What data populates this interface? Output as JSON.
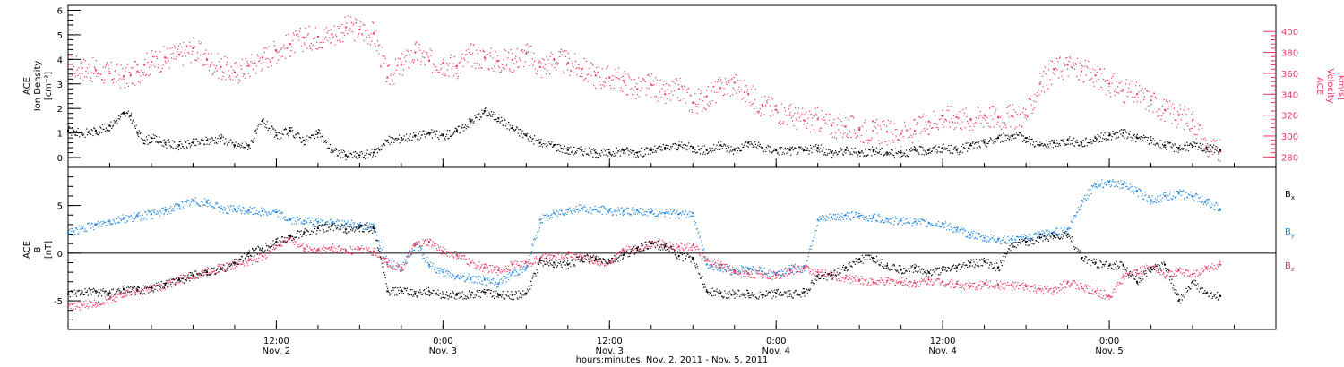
{
  "colors": {
    "density": "#000000",
    "velocity": "#e8365d",
    "bx": "#000000",
    "by": "#1e86e0",
    "bz": "#e8365d"
  },
  "time_axis": {
    "tick_times": [
      "12:00",
      "0:00",
      "12:00",
      "0:00",
      "12:00",
      "0:00"
    ],
    "tick_dates": [
      "Nov. 2",
      "Nov. 3",
      "Nov. 3",
      "Nov. 4",
      "Nov. 4",
      "Nov. 5"
    ],
    "xlabel": "hours:minutes, Nov.  2, 2011 - Nov.  5, 2011"
  },
  "chart_data": [
    {
      "type": "scatter",
      "panel": "top",
      "ylabel_left": [
        "ACE",
        "Ion Density",
        "[cm⁻³]"
      ],
      "ylabel_right": [
        "ACE",
        "Velocity",
        "[km/s]"
      ],
      "ylim_left": [
        -0.4,
        6.2
      ],
      "ylim_right": [
        270,
        425
      ],
      "yticks_left": [
        0,
        1,
        2,
        3,
        4,
        5,
        6
      ],
      "yticks_right": [
        280,
        300,
        320,
        340,
        360,
        380,
        400
      ],
      "xlim_hours": [
        -3,
        84
      ],
      "grid": false,
      "series": [
        {
          "axis": "left",
          "color_key": "density",
          "x": [
            -3,
            -2,
            -1,
            0,
            1,
            1.5,
            2,
            2.5,
            3,
            4,
            5,
            6,
            7,
            8,
            9,
            10,
            11,
            12,
            13,
            14,
            15,
            16,
            17,
            18,
            19,
            20,
            21,
            22,
            23,
            24,
            25,
            26,
            27,
            28,
            29,
            30,
            31,
            32,
            33,
            34,
            35,
            36,
            37,
            38,
            39,
            40,
            41,
            42,
            43,
            44,
            45,
            46,
            47,
            48,
            49,
            50,
            51,
            52,
            53,
            54,
            55,
            56,
            57,
            58,
            59,
            60,
            61,
            62,
            63,
            64,
            65,
            66,
            67,
            68,
            69,
            70,
            71,
            72,
            73,
            74,
            75,
            76,
            77,
            78,
            79,
            80
          ],
          "y": [
            1.1,
            1.0,
            1.1,
            1.3,
            1.8,
            1.7,
            1.0,
            0.7,
            0.8,
            0.6,
            0.5,
            0.6,
            0.7,
            0.8,
            0.5,
            0.5,
            1.5,
            0.9,
            1.1,
            0.7,
            1.0,
            0.3,
            0.1,
            0.1,
            0.2,
            0.7,
            0.8,
            0.9,
            1.0,
            0.9,
            1.1,
            1.5,
            1.9,
            1.6,
            1.2,
            0.9,
            0.6,
            0.5,
            0.3,
            0.3,
            0.2,
            0.2,
            0.3,
            0.2,
            0.3,
            0.4,
            0.5,
            0.4,
            0.3,
            0.5,
            0.3,
            0.6,
            0.4,
            0.3,
            0.3,
            0.3,
            0.4,
            0.2,
            0.3,
            0.2,
            0.3,
            0.2,
            0.2,
            0.3,
            0.3,
            0.4,
            0.3,
            0.5,
            0.6,
            0.8,
            0.9,
            0.8,
            0.5,
            0.6,
            0.7,
            0.6,
            0.8,
            0.9,
            1.0,
            0.8,
            0.7,
            0.5,
            0.4,
            0.5,
            0.4,
            0.3
          ]
        },
        {
          "axis": "right",
          "color_key": "velocity",
          "x": [
            -3,
            -2,
            -1,
            0,
            1,
            1.5,
            2,
            2.5,
            3,
            4,
            5,
            6,
            7,
            8,
            9,
            10,
            11,
            12,
            13,
            14,
            15,
            16,
            17,
            18,
            19,
            20,
            21,
            22,
            23,
            24,
            25,
            26,
            27,
            28,
            29,
            30,
            31,
            32,
            33,
            34,
            35,
            36,
            37,
            38,
            39,
            40,
            41,
            42,
            43,
            44,
            45,
            46,
            47,
            48,
            49,
            50,
            51,
            52,
            53,
            54,
            55,
            56,
            57,
            58,
            59,
            60,
            61,
            62,
            63,
            64,
            65,
            66,
            67,
            68,
            69,
            70,
            71,
            72,
            73,
            74,
            75,
            76,
            77,
            78,
            79,
            80
          ],
          "y": [
            368,
            365,
            363,
            360,
            357,
            358,
            362,
            368,
            371,
            375,
            378,
            384,
            373,
            366,
            361,
            367,
            375,
            382,
            388,
            394,
            395,
            397,
            404,
            402,
            398,
            356,
            368,
            380,
            372,
            370,
            367,
            378,
            375,
            372,
            373,
            379,
            366,
            373,
            370,
            364,
            358,
            356,
            353,
            345,
            349,
            340,
            345,
            332,
            338,
            346,
            351,
            340,
            330,
            325,
            320,
            315,
            316,
            310,
            309,
            306,
            305,
            304,
            302,
            305,
            314,
            319,
            318,
            316,
            320,
            318,
            319,
            320,
            350,
            364,
            368,
            362,
            358,
            350,
            344,
            340,
            334,
            325,
            320,
            315,
            290,
            285
          ]
        }
      ]
    },
    {
      "type": "scatter",
      "panel": "bottom",
      "ylabel_left": [
        "ACE",
        "B",
        "[nT]"
      ],
      "ylim": [
        -8,
        9
      ],
      "yticks": [
        -5,
        0,
        5
      ],
      "xlim_hours": [
        -3,
        84
      ],
      "zero_line": true,
      "grid": false,
      "legend": "right",
      "series": [
        {
          "name": "B",
          "subscript": "x",
          "color_key": "bx",
          "x": [
            -3,
            -2,
            -1,
            0,
            1,
            2,
            3,
            4,
            5,
            6,
            7,
            8,
            9,
            10,
            11,
            12,
            13,
            14,
            15,
            16,
            17,
            18,
            19,
            20,
            21,
            22,
            23,
            24,
            25,
            26,
            27,
            28,
            29,
            30,
            31,
            32,
            33,
            34,
            35,
            36,
            37,
            38,
            39,
            40,
            41,
            42,
            43,
            44,
            45,
            46,
            47,
            48,
            49,
            50,
            51,
            52,
            53,
            54,
            55,
            56,
            57,
            58,
            59,
            60,
            61,
            62,
            63,
            64,
            65,
            66,
            67,
            68,
            69,
            70,
            71,
            72,
            73,
            74,
            75,
            76,
            77,
            78,
            79,
            80
          ],
          "y": [
            -4.3,
            -4.1,
            -4.0,
            -4.2,
            -3.8,
            -3.9,
            -3.6,
            -3.2,
            -2.8,
            -2.3,
            -2.0,
            -1.6,
            -1.0,
            0.0,
            0.5,
            1.2,
            1.8,
            2.2,
            2.6,
            2.9,
            2.5,
            2.7,
            2.6,
            -4.0,
            -3.9,
            -4.2,
            -4.0,
            -4.3,
            -4.4,
            -4.3,
            -4.1,
            -4.4,
            -4.4,
            -4.2,
            -0.8,
            -1.0,
            -1.2,
            -0.5,
            -0.6,
            -0.8,
            -0.2,
            0.5,
            1.0,
            0.7,
            -0.3,
            -0.5,
            -4.0,
            -4.2,
            -4.3,
            -4.2,
            -4.4,
            -4.2,
            -4.3,
            -4.1,
            -2.5,
            -2.3,
            -1.5,
            -0.6,
            -0.5,
            -1.3,
            -1.7,
            -1.5,
            -2.0,
            -1.8,
            -1.5,
            -1.0,
            -0.9,
            -1.5,
            1.0,
            1.2,
            1.6,
            1.8,
            2.0,
            -0.5,
            -1.0,
            -1.3,
            -1.2,
            -3.0,
            -1.5,
            -1.2,
            -5.0,
            -3.0,
            -4.2,
            -4.5
          ]
        },
        {
          "name": "B",
          "subscript": "y",
          "color_key": "by",
          "x": [
            -3,
            -2,
            -1,
            0,
            1,
            2,
            3,
            4,
            5,
            6,
            7,
            8,
            9,
            10,
            11,
            12,
            13,
            14,
            15,
            16,
            17,
            18,
            19,
            20,
            21,
            22,
            23,
            24,
            25,
            26,
            27,
            28,
            29,
            30,
            31,
            32,
            33,
            34,
            35,
            36,
            37,
            38,
            39,
            40,
            41,
            42,
            43,
            44,
            45,
            46,
            47,
            48,
            49,
            50,
            51,
            52,
            53,
            54,
            55,
            56,
            57,
            58,
            59,
            60,
            61,
            62,
            63,
            64,
            65,
            66,
            67,
            68,
            69,
            70,
            71,
            72,
            73,
            74,
            75,
            76,
            77,
            78,
            79,
            80
          ],
          "y": [
            2.2,
            2.6,
            3.0,
            3.4,
            3.7,
            3.9,
            4.1,
            4.5,
            5.0,
            5.5,
            5.3,
            4.7,
            4.6,
            4.5,
            4.4,
            4.3,
            3.5,
            3.4,
            3.3,
            3.2,
            3.1,
            3.0,
            2.8,
            -1.0,
            -1.5,
            1.0,
            -1.2,
            -2.0,
            -2.5,
            -2.6,
            -2.8,
            -3.2,
            -2.0,
            -1.5,
            3.5,
            4.2,
            4.6,
            4.7,
            4.6,
            4.5,
            4.4,
            4.5,
            4.3,
            4.2,
            4.1,
            4.2,
            -1.2,
            -1.5,
            -1.8,
            -1.6,
            -1.9,
            -2.1,
            -1.6,
            -1.5,
            3.5,
            3.8,
            4.0,
            3.9,
            3.8,
            3.6,
            3.4,
            3.3,
            3.2,
            3.1,
            2.4,
            2.0,
            1.6,
            1.5,
            1.4,
            1.6,
            2.0,
            2.2,
            2.5,
            5.5,
            7.2,
            7.5,
            7.2,
            6.5,
            5.6,
            6.0,
            6.3,
            6.0,
            5.5,
            4.6
          ]
        },
        {
          "name": "B",
          "subscript": "z",
          "color_key": "bz",
          "x": [
            -3,
            -2,
            -1,
            0,
            1,
            2,
            3,
            4,
            5,
            6,
            7,
            8,
            9,
            10,
            11,
            12,
            13,
            14,
            15,
            16,
            17,
            18,
            19,
            20,
            21,
            22,
            23,
            24,
            25,
            26,
            27,
            28,
            29,
            30,
            31,
            32,
            33,
            34,
            35,
            36,
            37,
            38,
            39,
            40,
            41,
            42,
            43,
            44,
            45,
            46,
            47,
            48,
            49,
            50,
            51,
            52,
            53,
            54,
            55,
            56,
            57,
            58,
            59,
            60,
            61,
            62,
            63,
            64,
            65,
            66,
            67,
            68,
            69,
            70,
            71,
            72,
            73,
            74,
            75,
            76,
            77,
            78,
            79,
            80
          ],
          "y": [
            -5.6,
            -5.4,
            -5.2,
            -4.8,
            -4.2,
            -4.0,
            -3.8,
            -3.3,
            -2.7,
            -2.3,
            -1.8,
            -1.5,
            -1.2,
            -0.8,
            -0.3,
            0.8,
            1.6,
            0.5,
            0.4,
            0.6,
            0.3,
            0.4,
            0.2,
            -1.0,
            -1.5,
            0.9,
            1.2,
            0.2,
            -0.2,
            -1.0,
            -1.5,
            -1.8,
            -1.2,
            -1.0,
            -0.6,
            -0.3,
            -0.1,
            -0.4,
            -0.8,
            -1.0,
            0.3,
            0.6,
            1.2,
            0.9,
            0.7,
            0.8,
            -0.8,
            -1.2,
            -2.0,
            -2.1,
            -2.2,
            -2.3,
            -1.8,
            -1.5,
            -2.0,
            -2.3,
            -2.6,
            -2.8,
            -3.0,
            -2.9,
            -3.0,
            -3.1,
            -2.8,
            -3.0,
            -3.2,
            -3.5,
            -3.2,
            -3.3,
            -3.4,
            -3.5,
            -3.8,
            -4.0,
            -3.0,
            -3.5,
            -4.0,
            -4.5,
            -2.5,
            -1.8,
            -1.5,
            -2.5,
            -1.8,
            -2.2,
            -1.5,
            -1.2
          ]
        }
      ]
    }
  ]
}
